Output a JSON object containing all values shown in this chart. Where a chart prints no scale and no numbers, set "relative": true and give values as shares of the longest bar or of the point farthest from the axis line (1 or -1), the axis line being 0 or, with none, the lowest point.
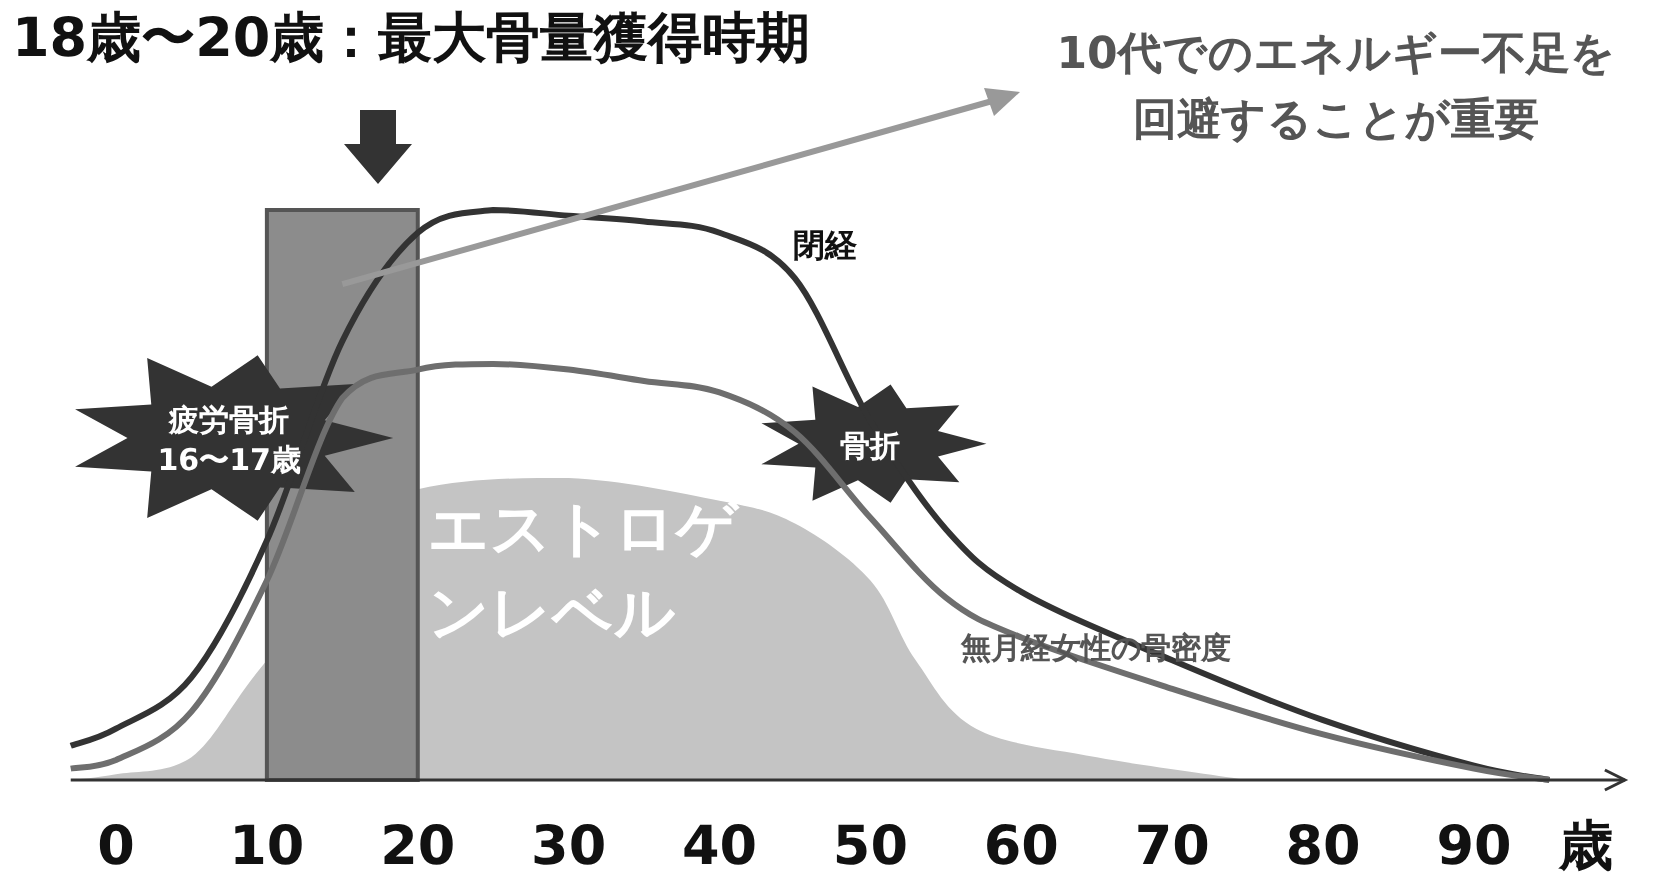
{
  "chart_data": {
    "type": "line",
    "relative": true,
    "title": "18歳〜20歳：最大骨量獲得時期",
    "xlabel": "歳",
    "xlim": [
      -3,
      100
    ],
    "xticks": [
      0,
      10,
      20,
      30,
      40,
      50,
      60,
      70,
      80,
      90
    ],
    "grid": false,
    "legend": false,
    "x": [
      -3,
      0,
      5,
      10,
      15,
      20,
      25,
      30,
      35,
      40,
      45,
      50,
      55,
      60,
      70,
      80,
      90,
      95
    ],
    "series": [
      {
        "type": "area",
        "name": "エストロゲンレベル",
        "color": "#c4c4c4",
        "x": [
          -3,
          0,
          5,
          10,
          20,
          30,
          40,
          45,
          50,
          53,
          57,
          65,
          75
        ],
        "values": [
          0,
          0.01,
          0.04,
          0.21,
          0.51,
          0.53,
          0.49,
          0.45,
          0.35,
          0.21,
          0.09,
          0.04,
          0
        ]
      },
      {
        "color": "#333333",
        "values": [
          0.06,
          0.09,
          0.18,
          0.42,
          0.77,
          0.96,
          1,
          0.99,
          0.98,
          0.96,
          0.88,
          0.63,
          0.44,
          0.33,
          0.21,
          0.105,
          0.025,
          0
        ]
      },
      {
        "name": "無月経女性の骨密度",
        "color": "#6e6e6e",
        "values": [
          0.02,
          0.035,
          0.12,
          0.35,
          0.67,
          0.72,
          0.73,
          0.72,
          0.7,
          0.68,
          0.61,
          0.46,
          0.32,
          0.25,
          0.16,
          0.08,
          0.02,
          0
        ]
      }
    ],
    "bands": [
      {
        "axis": "x",
        "from": 10,
        "to": 20,
        "color": "#8c8c8c"
      }
    ],
    "annotations": [
      "10代でのエネルギー不足を回避することが重要",
      "疲労骨折 16〜17歳",
      "骨折",
      "閉経"
    ]
  }
}
